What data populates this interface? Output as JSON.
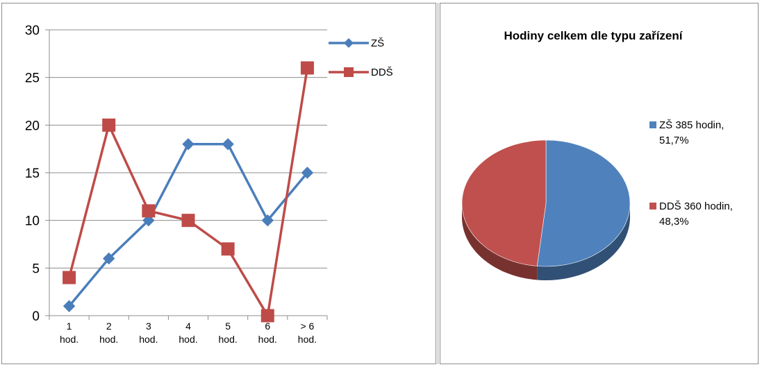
{
  "chart_data": [
    {
      "type": "line",
      "categories": [
        "1 hod.",
        "2 hod.",
        "3 hod.",
        "4 hod.",
        "5 hod.",
        "6 hod.",
        "> 6 hod."
      ],
      "category_lines": [
        [
          "1",
          "hod."
        ],
        [
          "2",
          "hod."
        ],
        [
          "3",
          "hod."
        ],
        [
          "4",
          "hod."
        ],
        [
          "5",
          "hod."
        ],
        [
          "6",
          "hod."
        ],
        [
          "> 6",
          "hod."
        ]
      ],
      "series": [
        {
          "name": "ZŠ",
          "values": [
            1,
            6,
            10,
            18,
            18,
            10,
            15
          ],
          "color": "#4a7ebb",
          "marker": "diamond"
        },
        {
          "name": "DDŠ",
          "values": [
            4,
            20,
            11,
            10,
            7,
            0,
            26
          ],
          "color": "#be4b48",
          "marker": "square"
        }
      ],
      "ylim": [
        0,
        30
      ],
      "yticks": [
        "0",
        "5",
        "10",
        "15",
        "20",
        "25",
        "30"
      ],
      "grid": true,
      "legend": "top-right"
    },
    {
      "type": "pie",
      "title": "Hodiny celkem dle typu zařízení",
      "slices": [
        {
          "label": "ZŠ 385 hodin,",
          "label2": "51,7%",
          "value": 385,
          "percent": 51.7,
          "color": "#4f81bd"
        },
        {
          "label": "DDŠ 360 hodin,",
          "label2": "48,3%",
          "value": 360,
          "percent": 48.3,
          "color": "#c0504d"
        }
      ],
      "legend": "right",
      "style": "3d"
    }
  ]
}
